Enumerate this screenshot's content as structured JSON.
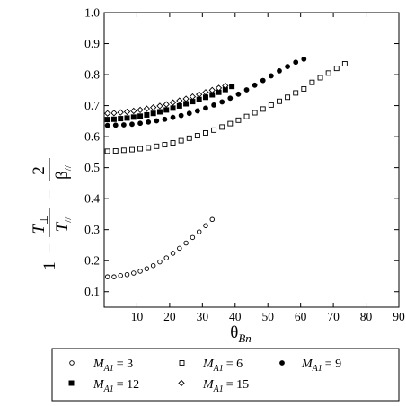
{
  "chart_data": {
    "type": "scatter",
    "title": "",
    "xlabel_main": "θ",
    "xlabel_sub": "Bn",
    "ylabel": {
      "one": "1",
      "minus1": "−",
      "minus2": "−",
      "t_perp": "T",
      "perp_sub": "⊥",
      "t_par": "T",
      "par_sub": "//",
      "two": "2",
      "beta": "β",
      "beta_sub": "//"
    },
    "xlim": [
      0,
      90
    ],
    "ylim": [
      0.05,
      1.0
    ],
    "x_ticks": [
      10,
      20,
      30,
      40,
      50,
      60,
      70,
      80,
      90
    ],
    "y_ticks": [
      0.1,
      0.2,
      0.3,
      0.4,
      0.5,
      0.6,
      0.7,
      0.8,
      0.9,
      1.0
    ],
    "x_tick_labels": [
      "10",
      "20",
      "30",
      "40",
      "50",
      "60",
      "70",
      "80",
      "90"
    ],
    "y_tick_labels": [
      "0.1",
      "0.2",
      "0.3",
      "0.4",
      "0.5",
      "0.6",
      "0.7",
      "0.8",
      "0.9",
      "1.0"
    ],
    "grid": false,
    "legend_placement": "below",
    "series": [
      {
        "name": "M_A1 = 3",
        "label_main": "M",
        "label_sub": "A1",
        "label_value": "= 3",
        "marker": "open-circle",
        "x": [
          1,
          3,
          5,
          7,
          9,
          11,
          13,
          15,
          17,
          19,
          21,
          23,
          25,
          27,
          29,
          31,
          33
        ],
        "y": [
          0.148,
          0.148,
          0.152,
          0.155,
          0.16,
          0.166,
          0.174,
          0.184,
          0.196,
          0.209,
          0.224,
          0.24,
          0.257,
          0.275,
          0.293,
          0.313,
          0.333
        ]
      },
      {
        "name": "M_A1 = 6",
        "label_main": "M",
        "label_sub": "A1",
        "label_value": "= 6",
        "marker": "open-square",
        "x": [
          1,
          3.5,
          6,
          8.5,
          11,
          13.5,
          16,
          18.5,
          21,
          23.5,
          26,
          28.5,
          31,
          33.5,
          36,
          38.5,
          41,
          43.5,
          46,
          48.5,
          51,
          53.5,
          56,
          58.5,
          61,
          63.5,
          66,
          68.5,
          71,
          73.5
        ],
        "y": [
          0.553,
          0.554,
          0.556,
          0.558,
          0.561,
          0.564,
          0.569,
          0.574,
          0.58,
          0.587,
          0.595,
          0.603,
          0.612,
          0.621,
          0.631,
          0.642,
          0.653,
          0.665,
          0.677,
          0.689,
          0.702,
          0.714,
          0.727,
          0.741,
          0.754,
          0.775,
          0.79,
          0.805,
          0.82,
          0.835
        ]
      },
      {
        "name": "M_A1 = 9",
        "label_main": "M",
        "label_sub": "A1",
        "label_value": "= 9",
        "marker": "filled-circle",
        "x": [
          1,
          3.5,
          6,
          8.5,
          11,
          13.5,
          16,
          18.5,
          21,
          23.5,
          26,
          28.5,
          31,
          33.5,
          36,
          38.5,
          41,
          43.5,
          46,
          48.5,
          51,
          53.5,
          56,
          58.5,
          61
        ],
        "y": [
          0.636,
          0.637,
          0.638,
          0.64,
          0.643,
          0.647,
          0.651,
          0.656,
          0.662,
          0.668,
          0.675,
          0.683,
          0.692,
          0.702,
          0.712,
          0.724,
          0.737,
          0.751,
          0.766,
          0.781,
          0.796,
          0.812,
          0.826,
          0.84,
          0.85
        ]
      },
      {
        "name": "M_A1 = 12",
        "label_main": "M",
        "label_sub": "A1",
        "label_value": "= 12",
        "marker": "filled-square",
        "x": [
          1,
          3,
          5,
          7,
          9,
          11,
          13,
          15,
          17,
          19,
          21,
          23,
          25,
          27,
          29,
          31,
          33,
          35,
          37,
          39
        ],
        "y": [
          0.655,
          0.656,
          0.658,
          0.66,
          0.663,
          0.666,
          0.67,
          0.675,
          0.68,
          0.686,
          0.692,
          0.699,
          0.706,
          0.713,
          0.72,
          0.727,
          0.735,
          0.743,
          0.752,
          0.762
        ]
      },
      {
        "name": "M_A1 = 15",
        "label_main": "M",
        "label_sub": "A1",
        "label_value": "= 15",
        "marker": "open-diamond",
        "x": [
          1,
          3,
          5,
          7,
          9,
          11,
          13,
          15,
          17,
          19,
          21,
          23,
          25,
          27,
          29,
          31,
          33,
          35,
          37
        ],
        "y": [
          0.675,
          0.676,
          0.678,
          0.68,
          0.683,
          0.686,
          0.69,
          0.694,
          0.699,
          0.704,
          0.71,
          0.716,
          0.722,
          0.729,
          0.736,
          0.743,
          0.75,
          0.757,
          0.764
        ]
      }
    ]
  }
}
